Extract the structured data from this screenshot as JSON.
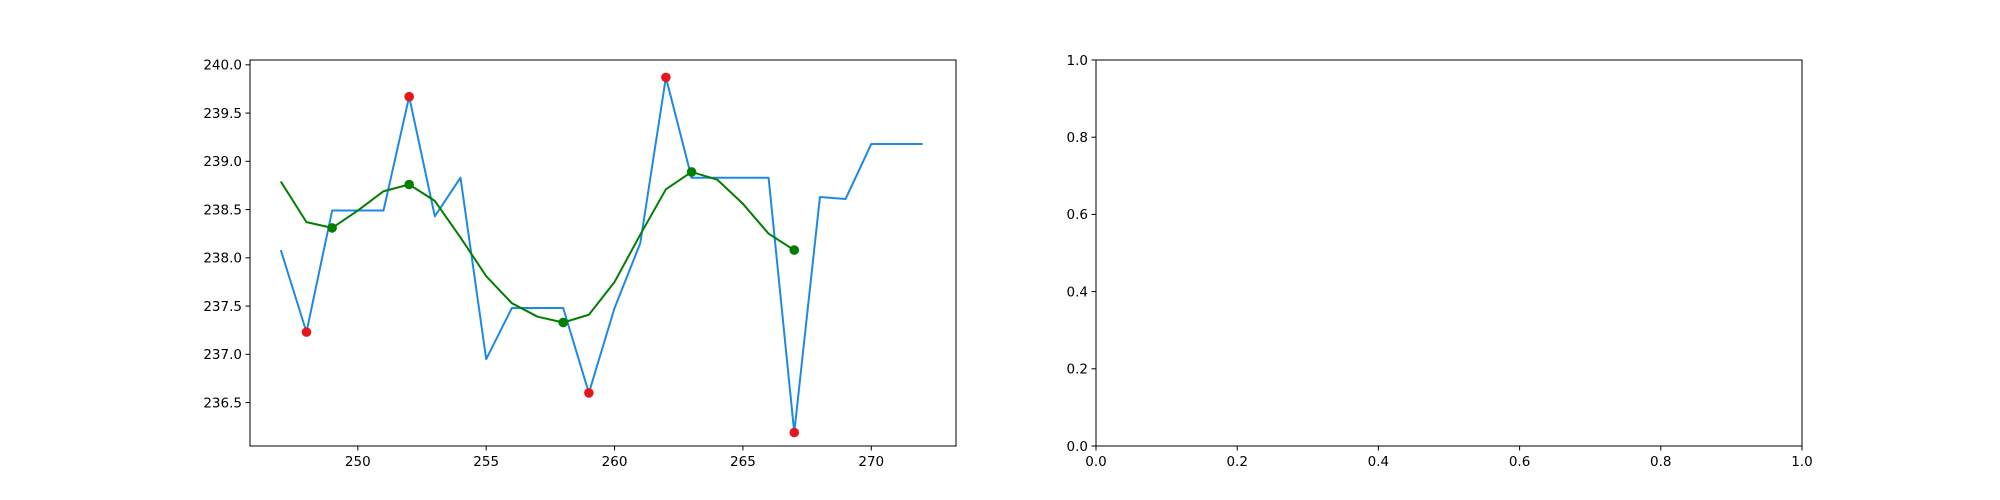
{
  "chart_data": [
    {
      "type": "line",
      "title": "",
      "xlabel": "",
      "ylabel": "",
      "xlim": [
        245.8,
        273.3
      ],
      "ylim": [
        236.05,
        240.05
      ],
      "xticks": [
        250,
        255,
        260,
        265,
        270
      ],
      "yticks": [
        236.5,
        237.0,
        237.5,
        238.0,
        238.5,
        239.0,
        239.5,
        240.0
      ],
      "xtick_labels": [
        "250",
        "255",
        "260",
        "265",
        "270"
      ],
      "ytick_labels": [
        "236.5",
        "237.0",
        "237.5",
        "238.0",
        "238.5",
        "239.0",
        "239.5",
        "240.0"
      ],
      "grid": false,
      "series": [
        {
          "color": "#1e88e5",
          "kind": "line",
          "x": [
            247,
            248,
            249,
            250,
            251,
            252,
            253,
            254,
            255,
            256,
            257,
            258,
            259,
            260,
            261,
            262,
            263,
            264,
            265,
            266,
            267,
            268,
            269,
            270,
            271,
            272
          ],
          "y": [
            238.08,
            237.23,
            238.49,
            238.49,
            238.49,
            239.67,
            238.43,
            238.83,
            236.95,
            237.48,
            237.48,
            237.48,
            236.6,
            237.48,
            238.15,
            239.87,
            238.83,
            238.83,
            238.83,
            238.83,
            236.19,
            238.63,
            238.61,
            239.18,
            239.18,
            239.18
          ]
        },
        {
          "color": "#007f00",
          "kind": "line",
          "x": [
            247,
            248,
            249,
            250,
            251,
            252,
            253,
            254,
            255,
            256,
            257,
            258,
            259,
            260,
            261,
            262,
            263,
            264,
            265,
            266,
            267
          ],
          "y": [
            238.79,
            238.37,
            238.31,
            238.49,
            238.69,
            238.76,
            238.59,
            238.21,
            237.81,
            237.53,
            237.39,
            237.33,
            237.41,
            237.75,
            238.24,
            238.71,
            238.89,
            238.81,
            238.56,
            238.25,
            238.08
          ]
        },
        {
          "color": "#007f00",
          "kind": "scatter",
          "x": [
            249,
            252,
            258,
            263,
            267
          ],
          "y": [
            238.31,
            238.76,
            237.33,
            238.89,
            238.08
          ]
        },
        {
          "color": "#e8151b",
          "kind": "scatter",
          "x": [
            248,
            252,
            259,
            262,
            267
          ],
          "y": [
            237.23,
            239.67,
            236.6,
            239.87,
            236.19
          ]
        }
      ]
    },
    {
      "type": "line",
      "title": "",
      "xlabel": "",
      "ylabel": "",
      "xlim": [
        0.0,
        1.0
      ],
      "ylim": [
        0.0,
        1.0
      ],
      "xticks": [
        0.0,
        0.2,
        0.4,
        0.6,
        0.8,
        1.0
      ],
      "yticks": [
        0.0,
        0.2,
        0.4,
        0.6,
        0.8,
        1.0
      ],
      "xtick_labels": [
        "0.0",
        "0.2",
        "0.4",
        "0.6",
        "0.8",
        "1.0"
      ],
      "ytick_labels": [
        "0.0",
        "0.2",
        "0.4",
        "0.6",
        "0.8",
        "1.0"
      ],
      "grid": false,
      "series": []
    }
  ]
}
